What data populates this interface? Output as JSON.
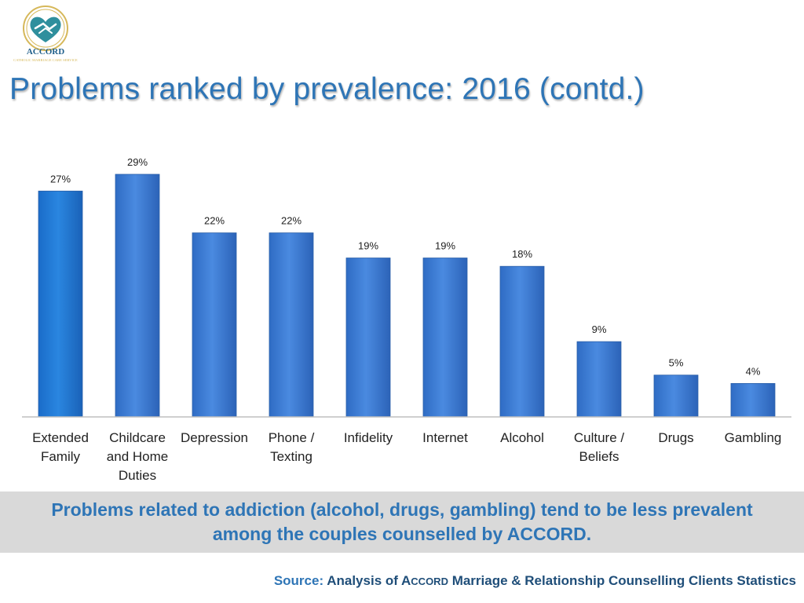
{
  "logo": {
    "name": "ACCORD",
    "tagline": "CATHOLIC MARRIAGE CARE SERVICE",
    "colors": {
      "heart": "#2f8f9d",
      "ring": "#d6b85a",
      "wordmark": "#1f5f8b"
    }
  },
  "title": "Problems ranked by prevalence: 2016 (contd.)",
  "chart_data": {
    "type": "bar",
    "categories": [
      [
        "Extended",
        "Family"
      ],
      [
        "Childcare",
        "and Home",
        "Duties"
      ],
      [
        "Depression"
      ],
      [
        "Phone /",
        "Texting"
      ],
      [
        "Infidelity"
      ],
      [
        "Internet"
      ],
      [
        "Alcohol"
      ],
      [
        "Culture /",
        "Beliefs"
      ],
      [
        "Drugs"
      ],
      [
        "Gambling"
      ]
    ],
    "values": [
      27,
      29,
      22,
      22,
      19,
      19,
      18,
      9,
      5,
      4
    ],
    "data_labels": [
      "27%",
      "29%",
      "22%",
      "22%",
      "19%",
      "19%",
      "18%",
      "9%",
      "5%",
      "4%"
    ],
    "unit": "%",
    "ylim": [
      0,
      29
    ],
    "grid": false,
    "legend": "none",
    "colors": {
      "bar": "#3a7bd5",
      "bar_first": "#1f78d1",
      "bar_edge": "#2a5fa8",
      "axis": "#bfbfbf"
    }
  },
  "note": {
    "lines": [
      "Problems related to addiction (alcohol, drugs, gambling) tend to be less prevalent",
      "among the couples counselled by ACCORD."
    ]
  },
  "source": {
    "label": "Source:",
    "prefix": "Analysis of A",
    "brand_smallcaps": "CCORD",
    "suffix": " Marriage & Relationship Counselling Clients Statistics"
  }
}
